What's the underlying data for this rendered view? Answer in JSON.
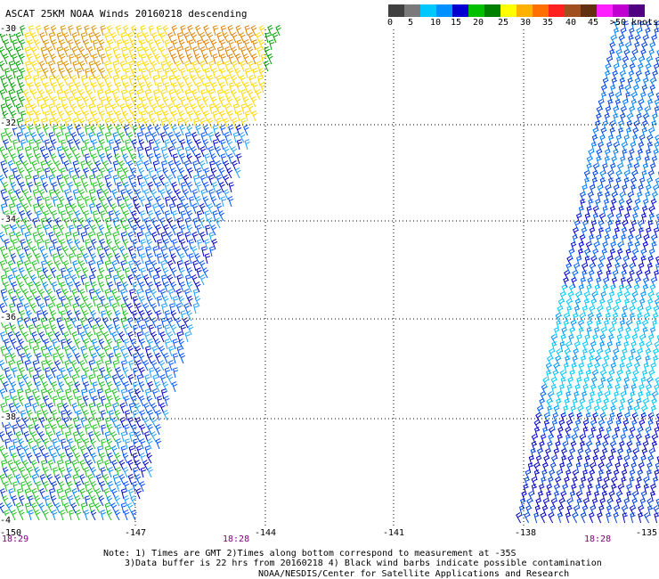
{
  "title": "ASCAT 25KM NOAA Winds 20160218 descending",
  "colorbar": {
    "colors": [
      "#404040",
      "#7a7a7a",
      "#00c8ff",
      "#0090ff",
      "#0000d0",
      "#00c000",
      "#008000",
      "#ffff00",
      "#ffb000",
      "#ff7000",
      "#ff2020",
      "#a05020",
      "#603010",
      "#ff20ff",
      "#c000d0",
      "#500080"
    ],
    "labels": [
      "0",
      "5",
      "10",
      "15",
      "20",
      "25",
      "30",
      "35",
      "40",
      "45",
      ">50 knots"
    ]
  },
  "map": {
    "latitudes": [
      "-30",
      "-32",
      "-34",
      "-36",
      "-38",
      "-4"
    ],
    "longitudes": [
      "-150",
      "-147",
      "-144",
      "-141",
      "-138",
      "-135"
    ],
    "times": [
      "18:29",
      "18:28",
      "18:28"
    ],
    "grid": true,
    "gridlines": {
      "latitudes": [
        "-32",
        "-34",
        "-36",
        "-38"
      ],
      "longitudes": [
        "-147",
        "-144",
        "-141",
        "-138"
      ]
    }
  },
  "notes": {
    "line1": "Note: 1) Times are GMT 2)Times along bottom correspond to measurement at -35S",
    "line2": "3)Data buffer is 22 hrs from 20160218 4) Black wind barbs indicate possible contamination"
  },
  "credit": "NOAA/NESDIS/Center for Satellite Applications and Research"
}
